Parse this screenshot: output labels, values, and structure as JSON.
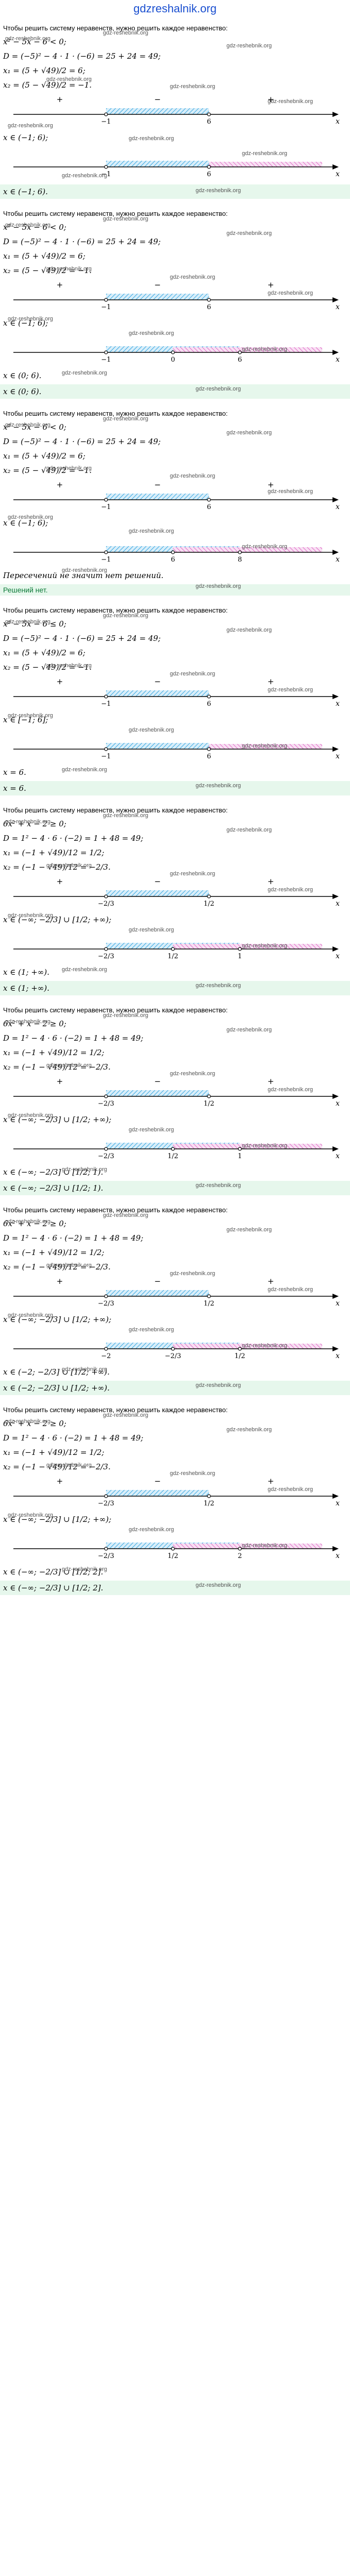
{
  "site": {
    "title": "gdzreshalnik.org"
  },
  "watermark": "gdz-reshebnik.org",
  "sections": [
    {
      "intro": "Чтобы решить систему неравенств, нужно решить каждое неравенство:",
      "lines": [
        "x² − 5x − 6 < 0;",
        "D = (−5)² − 4 · 1 · (−6) = 25 + 24 = 49;",
        "x₁ = (5 + √49)/2 = 6;",
        "x₂ = (5 − √49)/2 = −1."
      ],
      "numline1": {
        "signs": [
          "+",
          "−",
          "+"
        ],
        "points": [
          "−1",
          "6"
        ],
        "axis": "x"
      },
      "lines2": [
        "x ∈ (−1; 6);"
      ],
      "numline2": {
        "points": [
          "−1",
          "6"
        ],
        "axis": "x"
      },
      "answer": "x ∈ (−1; 6)."
    },
    {
      "intro": "Чтобы решить систему неравенств, нужно решить каждое неравенство:",
      "lines": [
        "x² − 5x − 6 < 0;",
        "D = (−5)² − 4 · 1 · (−6) = 25 + 24 = 49;",
        "x₁ = (5 + √49)/2 = 6;",
        "x₂ = (5 − √49)/2 = −1."
      ],
      "numline1": {
        "signs": [
          "+",
          "−",
          "+"
        ],
        "points": [
          "−1",
          "6"
        ],
        "axis": "x"
      },
      "lines2": [
        "x ∈ (−1; 6);"
      ],
      "numline2": {
        "points": [
          "−1",
          "0",
          "6"
        ],
        "axis": "x"
      },
      "lines3": [
        "x ∈ (0; 6)."
      ],
      "answer": "x ∈ (0; 6)."
    },
    {
      "intro": "Чтобы решить систему неравенств, нужно решить каждое неравенство:",
      "lines": [
        "x² − 5x − 6 < 0;",
        "D = (−5)² − 4 · 1 · (−6) = 25 + 24 = 49;",
        "x₁ = (5 + √49)/2 = 6;",
        "x₂ = (5 − √49)/2 = −1."
      ],
      "numline1": {
        "signs": [
          "+",
          "−",
          "+"
        ],
        "points": [
          "−1",
          "6"
        ],
        "axis": "x"
      },
      "lines2": [
        "x ∈ (−1; 6);"
      ],
      "numline2": {
        "points": [
          "−1",
          "6",
          "8"
        ],
        "axis": "x"
      },
      "lines3": [
        "Пересечений не значит нет решений."
      ],
      "answer_note": "Решений нет."
    },
    {
      "intro": "Чтобы решить систему неравенств, нужно решить каждое неравенство:",
      "lines": [
        "x² − 5x − 6 ≤ 0;",
        "D = (−5)² − 4 · 1 · (−6) = 25 + 24 = 49;",
        "x₁ = (5 + √49)/2 = 6;",
        "x₂ = (5 − √49)/2 = −1."
      ],
      "numline1": {
        "signs": [
          "+",
          "−",
          "+"
        ],
        "points": [
          "−1",
          "6"
        ],
        "axis": "x"
      },
      "lines2": [
        "x ∈ [−1; 6];"
      ],
      "numline2": {
        "points": [
          "−1",
          "6"
        ],
        "axis": "x"
      },
      "lines3": [
        "x = 6."
      ],
      "answer": "x = 6."
    },
    {
      "intro": "Чтобы решить систему неравенств, нужно решить каждое неравенство:",
      "lines": [
        "6x² + x − 2 ≥ 0;",
        "D = 1² − 4 · 6 · (−2) = 1 + 48 = 49;",
        "x₁ = (−1 + √49)/12 = 1/2;",
        "x₂ = (−1 − √49)/12 = −2/3."
      ],
      "numline1": {
        "signs": [
          "+",
          "−",
          "+"
        ],
        "points": [
          "−2/3",
          "1/2"
        ],
        "axis": "x"
      },
      "lines2": [
        "x ∈ (−∞; −2/3] ∪ [1/2; +∞);"
      ],
      "numline2": {
        "points": [
          "−2/3",
          "1/2",
          "1"
        ],
        "axis": "x"
      },
      "lines3": [
        "x ∈ (1; +∞)."
      ],
      "answer": "x ∈ (1; +∞)."
    },
    {
      "intro": "Чтобы решить систему неравенств, нужно решить каждое неравенство:",
      "lines": [
        "6x² + x − 2 ≥ 0;",
        "D = 1² − 4 · 6 · (−2) = 1 + 48 = 49;",
        "x₁ = (−1 + √49)/12 = 1/2;",
        "x₂ = (−1 − √49)/12 = −2/3."
      ],
      "numline1": {
        "signs": [
          "+",
          "−",
          "+"
        ],
        "points": [
          "−2/3",
          "1/2"
        ],
        "axis": "x"
      },
      "lines2": [
        "x ∈ (−∞; −2/3] ∪ [1/2; +∞);"
      ],
      "numline2": {
        "points": [
          "−2/3",
          "1/2",
          "1"
        ],
        "axis": "x"
      },
      "lines3": [
        "x ∈ (−∞; −2/3] ∪ [1/2; 1)."
      ],
      "answer": "x ∈ (−∞; −2/3] ∪ [1/2; 1)."
    },
    {
      "intro": "Чтобы решить систему неравенств, нужно решить каждое неравенство:",
      "lines": [
        "6x² + x − 2 ≥ 0;",
        "D = 1² − 4 · 6 · (−2) = 1 + 48 = 49;",
        "x₁ = (−1 + √49)/12 = 1/2;",
        "x₂ = (−1 − √49)/12 = −2/3."
      ],
      "numline1": {
        "signs": [
          "+",
          "−",
          "+"
        ],
        "points": [
          "−2/3",
          "1/2"
        ],
        "axis": "x"
      },
      "lines2": [
        "x ∈ (−∞; −2/3] ∪ [1/2; +∞);"
      ],
      "numline2": {
        "points": [
          "−2",
          "−2/3",
          "1/2"
        ],
        "axis": "x"
      },
      "lines3": [
        "x ∈ (−2; −2/3] ∪ [1/2; +∞)."
      ],
      "answer": "x ∈ (−2; −2/3] ∪ [1/2; +∞)."
    },
    {
      "intro": "Чтобы решить систему неравенств, нужно решить каждое неравенство:",
      "lines": [
        "6x² + x − 2 ≥ 0;",
        "D = 1² − 4 · 6 · (−2) = 1 + 48 = 49;",
        "x₁ = (−1 + √49)/12 = 1/2;",
        "x₂ = (−1 − √49)/12 = −2/3."
      ],
      "numline1": {
        "signs": [
          "+",
          "−",
          "+"
        ],
        "points": [
          "−2/3",
          "1/2"
        ],
        "axis": "x"
      },
      "lines2": [
        "x ∈ (−∞; −2/3] ∪ [1/2; +∞);"
      ],
      "numline2": {
        "points": [
          "−2/3",
          "1/2",
          "2"
        ],
        "axis": "x"
      },
      "lines3": [
        "x ∈ (−∞; −2/3] ∪ [1/2; 2]."
      ],
      "answer": "x ∈ (−∞; −2/3] ∪ [1/2; 2]."
    }
  ],
  "colors": {
    "blue_hatch": "#38a7e0",
    "pink_hatch": "#e06fc8",
    "answer_bg": "#e6f7ec",
    "title": "#1a4fd0"
  }
}
